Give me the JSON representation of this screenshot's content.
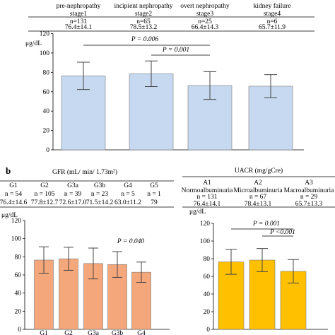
{
  "chart_data": [
    {
      "type": "bar",
      "panel": "",
      "ylabel": "μg/dL",
      "ylim": [
        0,
        120
      ],
      "yticks": [
        0,
        20,
        40,
        60,
        80,
        100,
        120
      ],
      "bar_color": "#c6d9f0",
      "header_title": "",
      "groups": [
        {
          "l1": "pre-nephropathy",
          "l2": "stage1",
          "n": "n=131",
          "stat": "76.4±14.1"
        },
        {
          "l1": "incipient nephropathy",
          "l2": "stage2",
          "n": "n=65",
          "stat": "78.5±13.2"
        },
        {
          "l1": "overt nephropathy",
          "l2": "stage3",
          "n": "n=25",
          "stat": "66.4±14.3"
        },
        {
          "l1": "kidney failure",
          "l2": "stage4",
          "n": "n=6",
          "stat": "65.7±11.9"
        }
      ],
      "categories": [
        "stage1",
        "stage2",
        "stage3",
        "stage4"
      ],
      "values": [
        76.4,
        78.5,
        66.4,
        65.7
      ],
      "errors": [
        14.1,
        13.2,
        14.3,
        11.9
      ],
      "annotations": [
        {
          "text": "P = 0.006",
          "from": 0,
          "to": 2
        },
        {
          "text": "P = 0.001",
          "from": 1,
          "to": 2
        }
      ]
    },
    {
      "type": "bar",
      "panel": "b",
      "ylabel": "μg/dL",
      "ylim": [
        0,
        120
      ],
      "yticks": [
        0,
        20,
        40,
        60,
        80,
        100,
        120
      ],
      "bar_color": "#f4a77a",
      "header_title": "GFR (mL/ min/ 1.73m²)",
      "groups": [
        {
          "l1": "G1",
          "n": "n = 54",
          "stat": "76.4±14.6"
        },
        {
          "l1": "G2",
          "n": "n = 105",
          "stat": "77.8±12.7"
        },
        {
          "l1": "G3a",
          "n": "n = 39",
          "stat": "72.6±17.0"
        },
        {
          "l1": "G3b",
          "n": "n = 23",
          "stat": "71.5±14.2"
        },
        {
          "l1": "G4",
          "n": "n = 5",
          "stat": "63.0±11.2"
        },
        {
          "l1": "G5",
          "n": "n = 1",
          "stat": "79"
        }
      ],
      "categories": [
        "G1",
        "G2",
        "G3a",
        "G3b",
        "G4"
      ],
      "values": [
        76.4,
        77.8,
        72.6,
        71.5,
        63.0
      ],
      "errors": [
        14.6,
        12.7,
        17.0,
        14.2,
        11.2
      ],
      "annotations": [
        {
          "text": "P = 0.040"
        }
      ]
    },
    {
      "type": "bar",
      "panel": "",
      "ylabel": "μg/dL",
      "ylim": [
        0,
        120
      ],
      "yticks": [
        0,
        20,
        40,
        60,
        80,
        100,
        120
      ],
      "bar_color": "#ffc000",
      "header_title": "UACR (mg/gCre)",
      "groups": [
        {
          "l1": "A1",
          "l2": "Normoalbuminuria",
          "n": "n = 131",
          "stat": "76.4±14.1"
        },
        {
          "l1": "A2",
          "l2": "Microalbuminuria",
          "n": "n = 67",
          "stat": "78.4±13.1"
        },
        {
          "l1": "A3",
          "l2": "Macroalbuminuria",
          "n": "n = 29",
          "stat": "65.7±13.3"
        }
      ],
      "categories": [
        "A1",
        "A2",
        "A3"
      ],
      "values": [
        76.4,
        78.4,
        65.7
      ],
      "errors": [
        14.1,
        13.1,
        13.3
      ],
      "annotations": [
        {
          "text": "P = 0.001",
          "from": 0,
          "to": 2
        },
        {
          "text": "P <0.001",
          "from": 1,
          "to": 2
        }
      ]
    }
  ]
}
